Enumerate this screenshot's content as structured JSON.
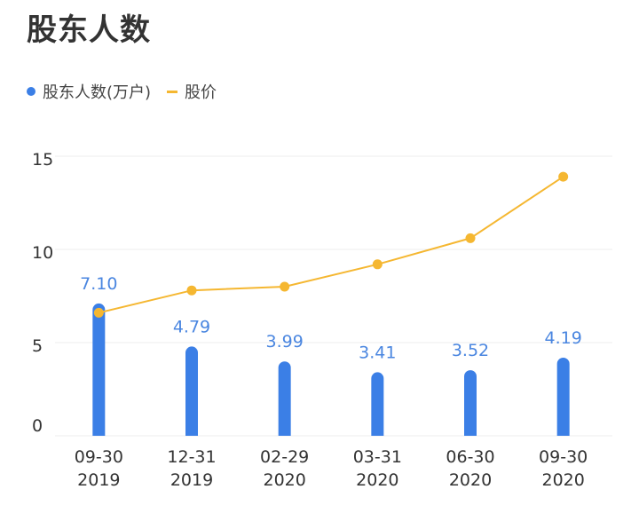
{
  "title": "股东人数",
  "colors": {
    "bar": "#3b7fe6",
    "line": "#f5b731",
    "label": "#4a86e0",
    "grid": "#ececec",
    "axis_text": "#333333"
  },
  "chart_data": {
    "type": "bar+line",
    "title": "股东人数",
    "categories": [
      [
        "09-30",
        "2019"
      ],
      [
        "12-31",
        "2019"
      ],
      [
        "02-29",
        "2020"
      ],
      [
        "03-31",
        "2020"
      ],
      [
        "06-30",
        "2020"
      ],
      [
        "09-30",
        "2020"
      ]
    ],
    "ylim": [
      0,
      15
    ],
    "yticks": [
      0,
      5,
      10,
      15
    ],
    "grid": true,
    "legend": "top-left",
    "series": [
      {
        "name": "股东人数(万户)",
        "type": "bar",
        "values": [
          7.1,
          4.79,
          3.99,
          3.41,
          3.52,
          4.19
        ],
        "labels": [
          "7.10",
          "4.79",
          "3.99",
          "3.41",
          "3.52",
          "4.19"
        ]
      },
      {
        "name": "股价",
        "type": "line",
        "values": [
          6.6,
          7.8,
          8.0,
          9.2,
          10.6,
          13.9
        ]
      }
    ]
  }
}
